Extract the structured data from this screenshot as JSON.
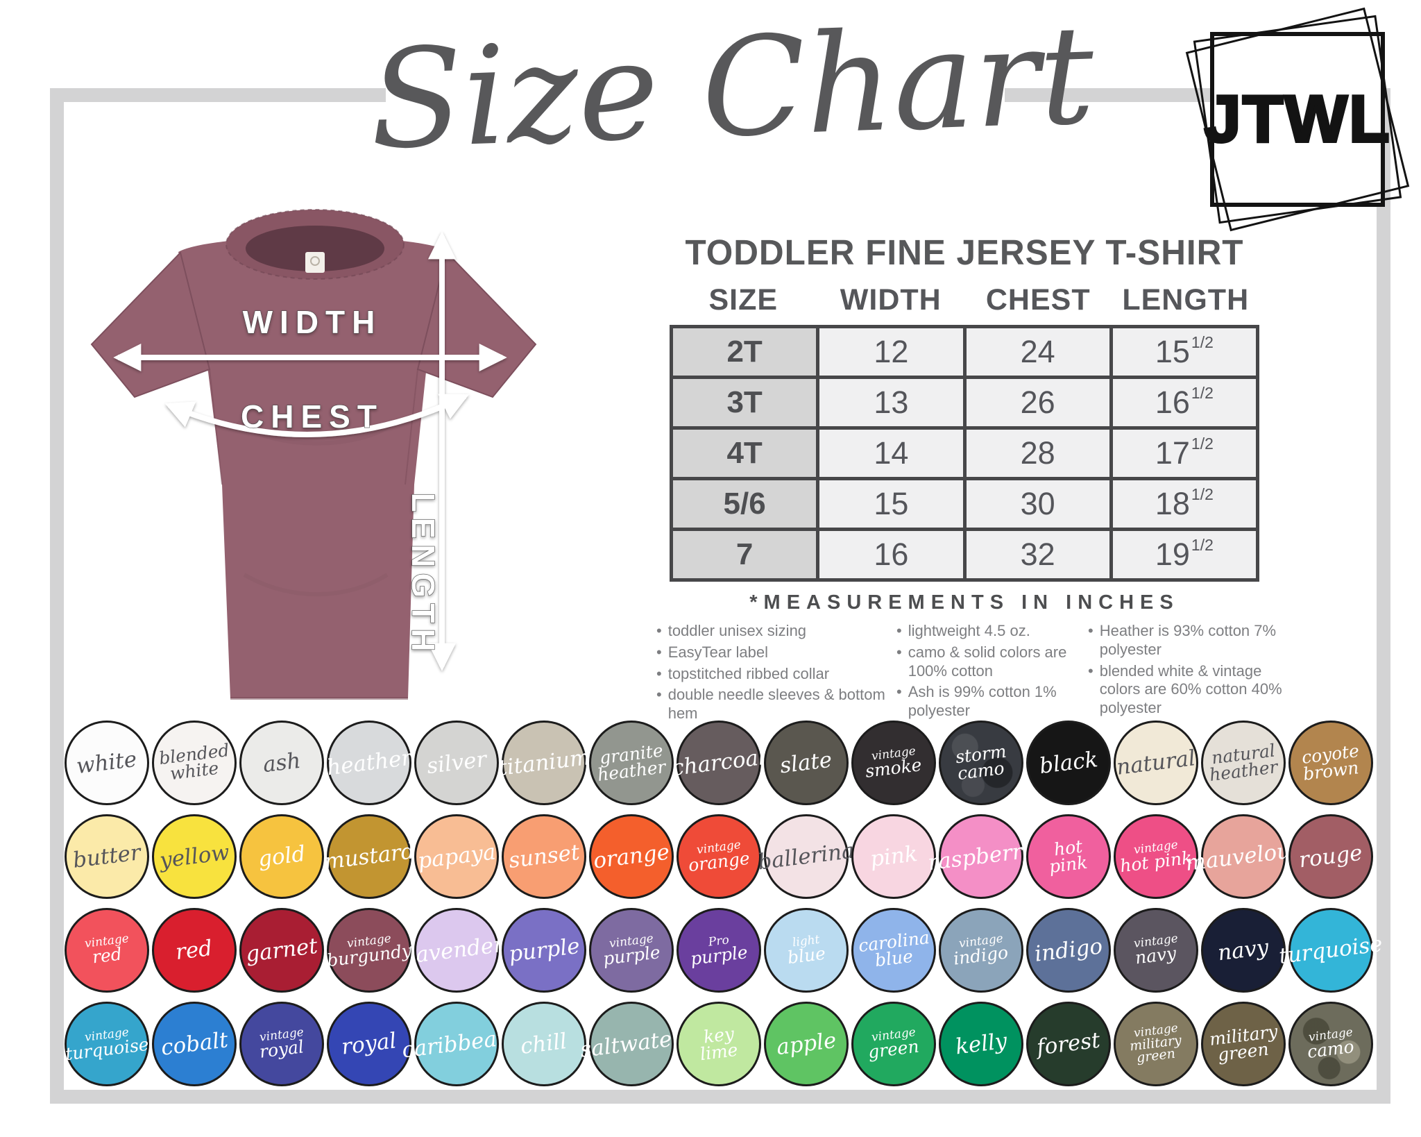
{
  "title": "Size Chart",
  "logo": {
    "text": "JTWL"
  },
  "diagram": {
    "width_label": "WIDTH",
    "chest_label": "CHEST",
    "length_label": "LENGTH",
    "shirt_color": "#94616f"
  },
  "product": {
    "heading": "TODDLER FINE JERSEY T-SHIRT",
    "table": {
      "columns": [
        "SIZE",
        "WIDTH",
        "CHEST",
        "LENGTH"
      ],
      "rows": [
        {
          "size": "2T",
          "width": "12",
          "chest": "24",
          "length": "15",
          "frac": "1/2"
        },
        {
          "size": "3T",
          "width": "13",
          "chest": "26",
          "length": "16",
          "frac": "1/2"
        },
        {
          "size": "4T",
          "width": "14",
          "chest": "28",
          "length": "17",
          "frac": "1/2"
        },
        {
          "size": "5/6",
          "width": "15",
          "chest": "30",
          "length": "18",
          "frac": "1/2"
        },
        {
          "size": "7",
          "width": "16",
          "chest": "32",
          "length": "19",
          "frac": "1/2"
        }
      ],
      "footnote": "*MEASUREMENTS IN INCHES"
    },
    "bullet_columns": [
      [
        "toddler unisex sizing",
        "EasyTear label",
        "topstitched ribbed collar",
        "double needle sleeves & bottom hem"
      ],
      [
        "lightweight 4.5 oz.",
        "camo & solid colors are 100% cotton",
        "Ash is 99% cotton 1% polyester"
      ],
      [
        "Heather is 93% cotton 7% polyester",
        "blended white & vintage colors are 60% cotton 40% polyester"
      ]
    ]
  },
  "chart_data": {
    "type": "table",
    "title": "TODDLER FINE JERSEY T-SHIRT",
    "columns": [
      "SIZE",
      "WIDTH",
      "CHEST",
      "LENGTH"
    ],
    "rows": [
      [
        "2T",
        12,
        24,
        15.5
      ],
      [
        "3T",
        13,
        26,
        16.5
      ],
      [
        "4T",
        14,
        28,
        17.5
      ],
      [
        "5/6",
        15,
        30,
        18.5
      ],
      [
        "7",
        16,
        32,
        19.5
      ]
    ],
    "units": "inches"
  },
  "swatches": {
    "rows": [
      [
        {
          "name": "white",
          "lines": [
            "white"
          ],
          "bg": "#fcfcfc",
          "fg": "dark"
        },
        {
          "name": "blended white",
          "lines": [
            "blended",
            "white"
          ],
          "bg": "#f6f3f1",
          "fg": "dark"
        },
        {
          "name": "ash",
          "lines": [
            "ash"
          ],
          "bg": "#ebebe9",
          "fg": "dark"
        },
        {
          "name": "heather",
          "lines": [
            "heather"
          ],
          "bg": "#d8dadc",
          "fg": "light"
        },
        {
          "name": "silver",
          "lines": [
            "silver"
          ],
          "bg": "#d4d4d2",
          "fg": "light"
        },
        {
          "name": "titanium",
          "lines": [
            "titanium"
          ],
          "bg": "#c9c2b3",
          "fg": "light"
        },
        {
          "name": "granite heather",
          "lines": [
            "granite",
            "heather"
          ],
          "bg": "#92968f",
          "fg": "light"
        },
        {
          "name": "charcoal",
          "lines": [
            "charcoal"
          ],
          "bg": "#665c5e",
          "fg": "light"
        },
        {
          "name": "slate",
          "lines": [
            "slate"
          ],
          "bg": "#5a574f",
          "fg": "light"
        },
        {
          "name": "vintage smoke",
          "lines": [
            "vintage",
            "smoke"
          ],
          "bg": "#322e30",
          "fg": "light",
          "small_first": true
        },
        {
          "name": "storm camo",
          "lines": [
            "storm",
            "camo"
          ],
          "bg": "#383b41",
          "fg": "light",
          "texture": "camo-dark"
        },
        {
          "name": "black",
          "lines": [
            "black"
          ],
          "bg": "#161616",
          "fg": "light"
        },
        {
          "name": "natural",
          "lines": [
            "natural"
          ],
          "bg": "#f1e9d7",
          "fg": "dark"
        },
        {
          "name": "natural heather",
          "lines": [
            "natural",
            "heather"
          ],
          "bg": "#e5e0d8",
          "fg": "dark"
        },
        {
          "name": "coyote brown",
          "lines": [
            "coyote",
            "brown"
          ],
          "bg": "#b2854e",
          "fg": "light"
        }
      ],
      [
        {
          "name": "butter",
          "lines": [
            "butter"
          ],
          "bg": "#fbeaa9",
          "fg": "dark"
        },
        {
          "name": "yellow",
          "lines": [
            "yellow"
          ],
          "bg": "#f8e23e",
          "fg": "dark"
        },
        {
          "name": "gold",
          "lines": [
            "gold"
          ],
          "bg": "#f6c33f",
          "fg": "light"
        },
        {
          "name": "mustard",
          "lines": [
            "mustard"
          ],
          "bg": "#c29531",
          "fg": "light"
        },
        {
          "name": "papaya",
          "lines": [
            "papaya"
          ],
          "bg": "#f8bd94",
          "fg": "light"
        },
        {
          "name": "sunset",
          "lines": [
            "sunset"
          ],
          "bg": "#f89e72",
          "fg": "light"
        },
        {
          "name": "orange",
          "lines": [
            "orange"
          ],
          "bg": "#f45f2c",
          "fg": "light"
        },
        {
          "name": "vintage orange",
          "lines": [
            "vintage",
            "orange"
          ],
          "bg": "#ef4b38",
          "fg": "light",
          "small_first": true
        },
        {
          "name": "ballerina",
          "lines": [
            "ballerina"
          ],
          "bg": "#f3e2e5",
          "fg": "dark"
        },
        {
          "name": "pink",
          "lines": [
            "pink"
          ],
          "bg": "#f8d6e1",
          "fg": "light"
        },
        {
          "name": "raspberry",
          "lines": [
            "raspberry"
          ],
          "bg": "#f48fc6",
          "fg": "light"
        },
        {
          "name": "hot pink",
          "lines": [
            "hot",
            "pink"
          ],
          "bg": "#f0609e",
          "fg": "light"
        },
        {
          "name": "vintage hot pink",
          "lines": [
            "vintage",
            "hot pink"
          ],
          "bg": "#ee4f86",
          "fg": "light",
          "small_first": true
        },
        {
          "name": "mauvelous",
          "lines": [
            "mauvelous"
          ],
          "bg": "#e7a49b",
          "fg": "light"
        },
        {
          "name": "rouge",
          "lines": [
            "rouge"
          ],
          "bg": "#a25e65",
          "fg": "light"
        }
      ],
      [
        {
          "name": "vintage red",
          "lines": [
            "vintage",
            "red"
          ],
          "bg": "#f2525c",
          "fg": "light",
          "small_first": true
        },
        {
          "name": "red",
          "lines": [
            "red"
          ],
          "bg": "#d91f2e",
          "fg": "light"
        },
        {
          "name": "garnet",
          "lines": [
            "garnet"
          ],
          "bg": "#a91e33",
          "fg": "light"
        },
        {
          "name": "vintage burgundy",
          "lines": [
            "vintage",
            "burgundy"
          ],
          "bg": "#8c4c5b",
          "fg": "light",
          "small_first": true
        },
        {
          "name": "lavender",
          "lines": [
            "lavender"
          ],
          "bg": "#dcc8ee",
          "fg": "light"
        },
        {
          "name": "purple",
          "lines": [
            "purple"
          ],
          "bg": "#7a70c5",
          "fg": "light"
        },
        {
          "name": "vintage purple",
          "lines": [
            "vintage",
            "purple"
          ],
          "bg": "#7e6ba1",
          "fg": "light",
          "small_first": true
        },
        {
          "name": "pro purple",
          "lines": [
            "Pro",
            "purple"
          ],
          "bg": "#6a3f9e",
          "fg": "light",
          "small_first": true
        },
        {
          "name": "light blue",
          "lines": [
            "light",
            "blue"
          ],
          "bg": "#badbf0",
          "fg": "light",
          "small_first": true
        },
        {
          "name": "carolina blue",
          "lines": [
            "carolina",
            "blue"
          ],
          "bg": "#8fb4ea",
          "fg": "light"
        },
        {
          "name": "vintage indigo",
          "lines": [
            "vintage",
            "indigo"
          ],
          "bg": "#8ba4ba",
          "fg": "light",
          "small_first": true
        },
        {
          "name": "indigo",
          "lines": [
            "indigo"
          ],
          "bg": "#5d7199",
          "fg": "light"
        },
        {
          "name": "vintage navy",
          "lines": [
            "vintage",
            "navy"
          ],
          "bg": "#5b5560",
          "fg": "light",
          "small_first": true
        },
        {
          "name": "navy",
          "lines": [
            "navy"
          ],
          "bg": "#191f36",
          "fg": "light"
        },
        {
          "name": "turquoise",
          "lines": [
            "turquoise"
          ],
          "bg": "#33b5d8",
          "fg": "light"
        }
      ],
      [
        {
          "name": "vintage turquoise",
          "lines": [
            "vintage",
            "turquoise"
          ],
          "bg": "#35a5cc",
          "fg": "light",
          "small_first": true
        },
        {
          "name": "cobalt",
          "lines": [
            "cobalt"
          ],
          "bg": "#2c7fd2",
          "fg": "light"
        },
        {
          "name": "vintage royal",
          "lines": [
            "vintage",
            "royal"
          ],
          "bg": "#44489e",
          "fg": "light",
          "small_first": true
        },
        {
          "name": "royal",
          "lines": [
            "royal"
          ],
          "bg": "#3446b4",
          "fg": "light"
        },
        {
          "name": "caribbean",
          "lines": [
            "caribbean"
          ],
          "bg": "#82cfdd",
          "fg": "light"
        },
        {
          "name": "chill",
          "lines": [
            "chill"
          ],
          "bg": "#b8dfe0",
          "fg": "light"
        },
        {
          "name": "saltwater",
          "lines": [
            "saltwater"
          ],
          "bg": "#97b5ae",
          "fg": "light"
        },
        {
          "name": "key lime",
          "lines": [
            "key",
            "lime"
          ],
          "bg": "#c0e8a0",
          "fg": "light"
        },
        {
          "name": "apple",
          "lines": [
            "apple"
          ],
          "bg": "#5fc463",
          "fg": "light"
        },
        {
          "name": "vintage green",
          "lines": [
            "vintage",
            "green"
          ],
          "bg": "#21a95f",
          "fg": "light",
          "small_first": true
        },
        {
          "name": "kelly",
          "lines": [
            "kelly"
          ],
          "bg": "#00925f",
          "fg": "light"
        },
        {
          "name": "forest",
          "lines": [
            "forest"
          ],
          "bg": "#263c2c",
          "fg": "light"
        },
        {
          "name": "vintage military green",
          "lines": [
            "vintage",
            "military",
            "green"
          ],
          "bg": "#847b61",
          "fg": "light",
          "small_first": true
        },
        {
          "name": "military green",
          "lines": [
            "military",
            "green"
          ],
          "bg": "#6e6247",
          "fg": "light"
        },
        {
          "name": "vintage camo",
          "lines": [
            "vintage",
            "camo"
          ],
          "bg": "#6d6c5c",
          "fg": "light",
          "texture": "camo-green",
          "small_first": true
        }
      ]
    ]
  }
}
